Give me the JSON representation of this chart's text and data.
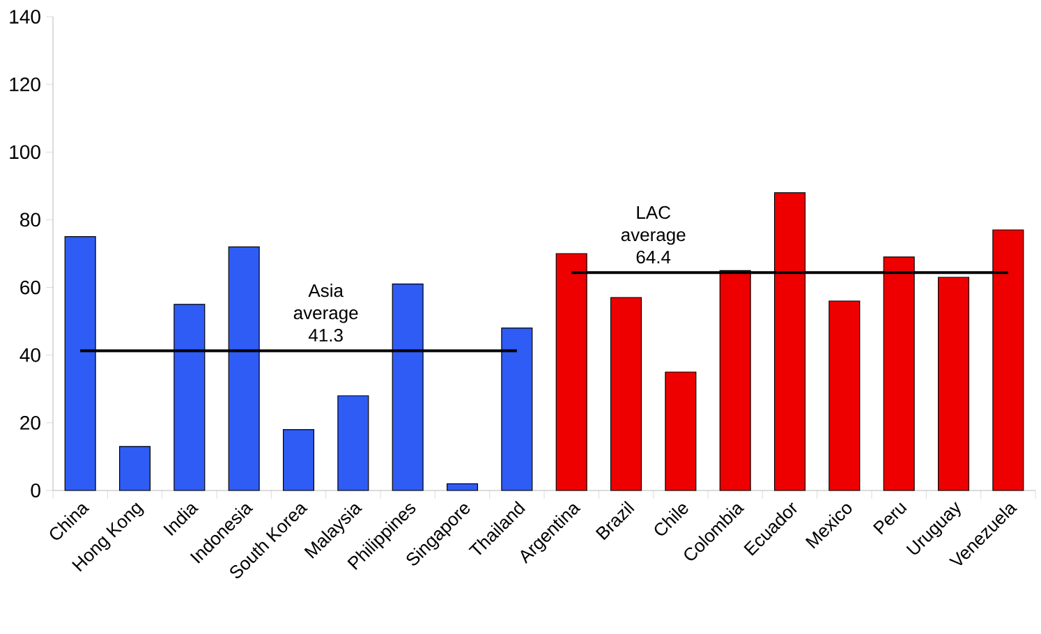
{
  "chart_data": {
    "type": "bar",
    "categories": [
      "China",
      "Hong Kong",
      "India",
      "Indonesia",
      "South Korea",
      "Malaysia",
      "Philippines",
      "Singapore",
      "Thailand",
      "Argentina",
      "Brazil",
      "Chile",
      "Colombia",
      "Ecuador",
      "Mexico",
      "Peru",
      "Uruguay",
      "Venezuela"
    ],
    "ylim": [
      0,
      140
    ],
    "yticks": [
      0,
      20,
      40,
      60,
      80,
      100,
      120,
      140
    ],
    "grid": false,
    "legend": false,
    "series": [
      {
        "values": [
          75,
          13,
          55,
          72,
          18,
          28,
          61,
          2,
          48,
          70,
          57,
          35,
          65,
          88,
          56,
          69,
          63,
          77
        ],
        "colors": [
          "#2f5cf5",
          "#2f5cf5",
          "#2f5cf5",
          "#2f5cf5",
          "#2f5cf5",
          "#2f5cf5",
          "#2f5cf5",
          "#2f5cf5",
          "#2f5cf5",
          "#ee0000",
          "#ee0000",
          "#ee0000",
          "#ee0000",
          "#ee0000",
          "#ee0000",
          "#ee0000",
          "#ee0000",
          "#ee0000"
        ]
      },
      {
        "type": "line",
        "name": "Asia average 41.3",
        "color": "#000000",
        "values": [
          41.3,
          41.3,
          41.3,
          41.3,
          41.3,
          41.3,
          41.3,
          41.3,
          41.3,
          null,
          null,
          null,
          null,
          null,
          null,
          null,
          null,
          null
        ]
      },
      {
        "type": "line",
        "name": "LAC average 64.4",
        "color": "#000000",
        "values": [
          null,
          null,
          null,
          null,
          null,
          null,
          null,
          null,
          null,
          64.4,
          64.4,
          64.4,
          64.4,
          64.4,
          64.4,
          64.4,
          64.4,
          64.4
        ]
      }
    ]
  }
}
